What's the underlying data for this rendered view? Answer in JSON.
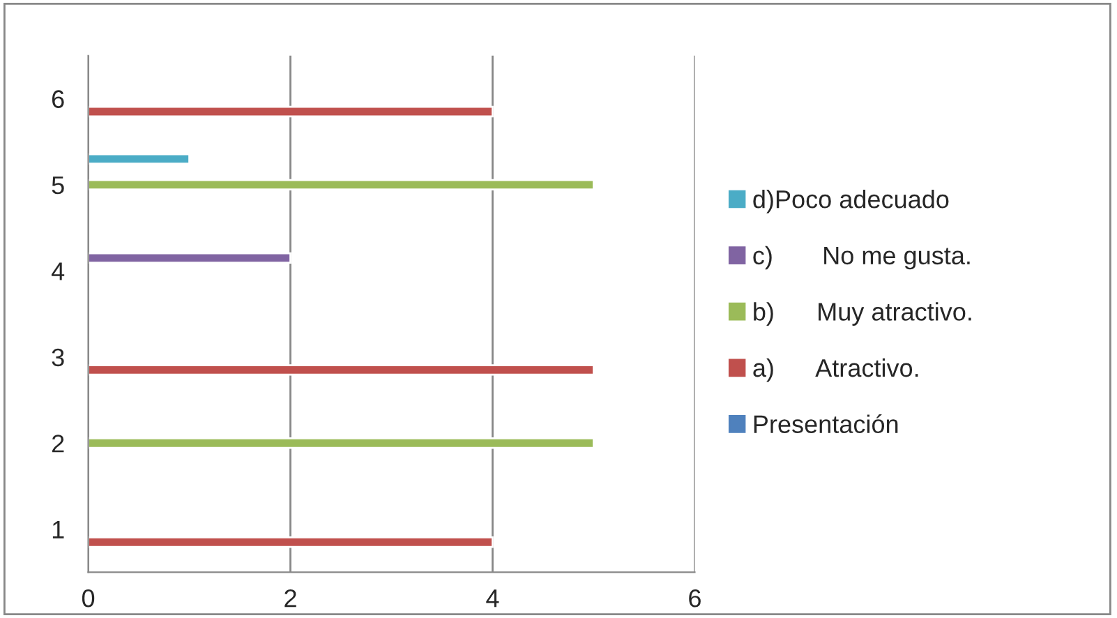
{
  "chart_data": {
    "type": "bar",
    "orientation": "horizontal",
    "categories": [
      "6",
      "5",
      "4",
      "3",
      "2",
      "1"
    ],
    "series": [
      {
        "name": "Presentación",
        "color": "#4f81bd",
        "values": [
          null,
          null,
          null,
          null,
          null,
          null
        ]
      },
      {
        "name": "a)      Atractivo.",
        "color": "#c0504d",
        "values": [
          4,
          null,
          null,
          5,
          null,
          4
        ]
      },
      {
        "name": "b)      Muy atractivo.",
        "color": "#9bbb59",
        "values": [
          null,
          5,
          null,
          null,
          5,
          null
        ]
      },
      {
        "name": "c)       No me gusta.",
        "color": "#8064a2",
        "values": [
          null,
          null,
          2,
          null,
          null,
          null
        ]
      },
      {
        "name": "d)Poco adecuado",
        "color": "#4bacc6",
        "values": [
          null,
          1,
          null,
          null,
          null,
          null
        ]
      }
    ],
    "xlim": [
      0,
      6
    ],
    "xticks": [
      0,
      2,
      4,
      6
    ],
    "grid": "x",
    "legend": "right"
  }
}
